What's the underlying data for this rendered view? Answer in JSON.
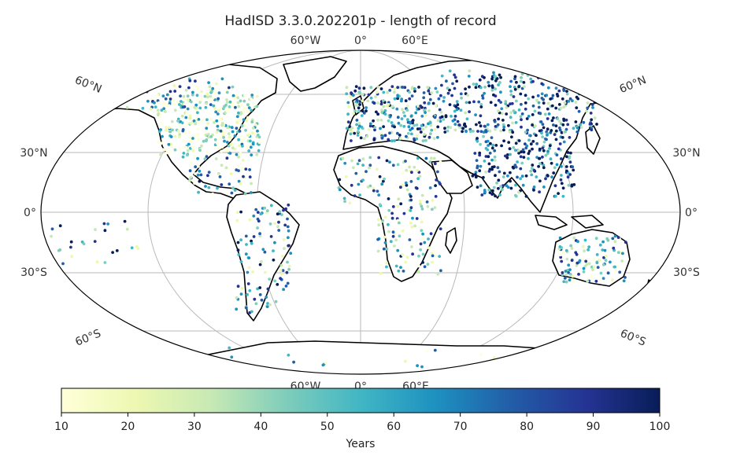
{
  "title": "HadISD 3.3.0.202201p - length of record",
  "lon_labels_top": [
    "60°W",
    "0°",
    "60°E"
  ],
  "lon_labels_bottom": [
    "60°W",
    "0°",
    "60°E"
  ],
  "lat_labels": {
    "n60_left": "60°N",
    "n60_right": "60°N",
    "n30_left": "30°N",
    "n30_right": "30°N",
    "eq_left": "0°",
    "eq_right": "0°",
    "s30_left": "30°S",
    "s30_right": "30°S",
    "s60_left": "60°S",
    "s60_right": "60°S"
  },
  "colorbar": {
    "label": "Years",
    "ticks": [
      "10",
      "20",
      "30",
      "40",
      "50",
      "60",
      "70",
      "80",
      "90",
      "100"
    ],
    "min": 10,
    "max": 100,
    "colors": [
      "#ffffd9",
      "#edf8b1",
      "#c7e9b4",
      "#7fcdbb",
      "#41b6c4",
      "#1d91c0",
      "#225ea8",
      "#253494",
      "#081d58"
    ]
  },
  "colors": {
    "land_outline": "#000000",
    "grid": "#b0b0b0",
    "frame": "#000000"
  }
}
